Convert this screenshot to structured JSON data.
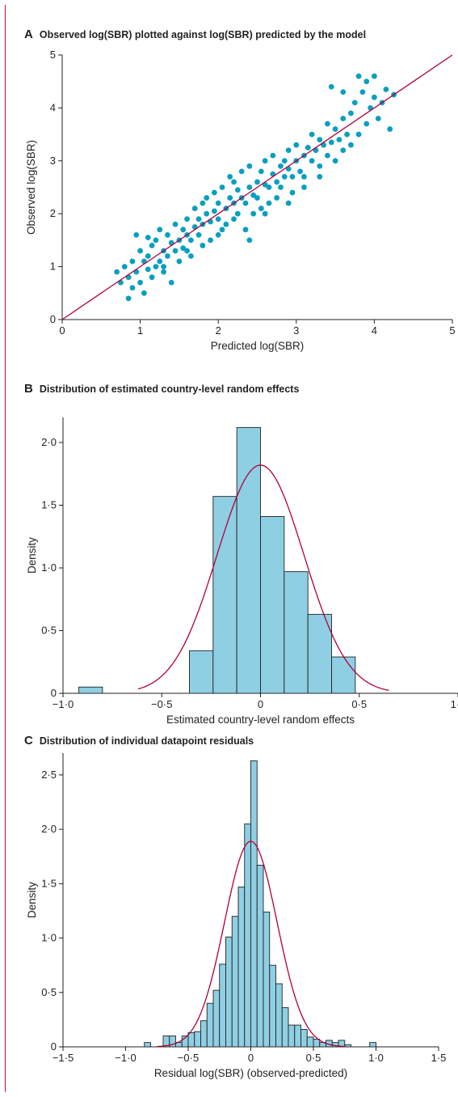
{
  "colors": {
    "point": "#0a9fbf",
    "bar_fill": "#8fcfe3",
    "bar_stroke": "#222222",
    "curve": "#b0003a",
    "axis": "#231f20",
    "border": "#c8102e"
  },
  "chart_data": [
    {
      "panel": "A",
      "type": "scatter",
      "title": "Observed log(SBR) plotted against log(SBR) predicted by the model",
      "xlabel": "Predicted log(SBR)",
      "ylabel": "Observed log(SBR)",
      "xlim": [
        0,
        5
      ],
      "ylim": [
        0,
        5
      ],
      "xticks": [
        "0",
        "1",
        "2",
        "3",
        "4",
        "5"
      ],
      "yticks": [
        "0",
        "1",
        "2",
        "3",
        "4",
        "5"
      ],
      "reference_line": "y = x",
      "grid": false,
      "points": [
        [
          0.7,
          0.9
        ],
        [
          0.75,
          0.7
        ],
        [
          0.8,
          1.0
        ],
        [
          0.85,
          0.4
        ],
        [
          0.85,
          0.8
        ],
        [
          0.9,
          0.6
        ],
        [
          0.9,
          1.1
        ],
        [
          0.95,
          0.9
        ],
        [
          0.95,
          1.6
        ],
        [
          1.0,
          1.3
        ],
        [
          1.0,
          0.7
        ],
        [
          1.05,
          1.1
        ],
        [
          1.05,
          0.5
        ],
        [
          1.1,
          1.2
        ],
        [
          1.1,
          0.95
        ],
        [
          1.15,
          1.4
        ],
        [
          1.15,
          0.8
        ],
        [
          1.2,
          1.0
        ],
        [
          1.2,
          1.5
        ],
        [
          1.25,
          1.1
        ],
        [
          1.25,
          1.7
        ],
        [
          1.3,
          1.3
        ],
        [
          1.3,
          0.9
        ],
        [
          1.35,
          1.6
        ],
        [
          1.35,
          1.2
        ],
        [
          1.4,
          1.45
        ],
        [
          1.4,
          0.7
        ],
        [
          1.45,
          1.3
        ],
        [
          1.45,
          1.8
        ],
        [
          1.5,
          1.5
        ],
        [
          1.5,
          1.1
        ],
        [
          1.55,
          1.7
        ],
        [
          1.55,
          1.35
        ],
        [
          1.6,
          1.6
        ],
        [
          1.6,
          1.9
        ],
        [
          1.65,
          1.5
        ],
        [
          1.65,
          1.2
        ],
        [
          1.7,
          1.75
        ],
        [
          1.7,
          2.1
        ],
        [
          1.75,
          1.6
        ],
        [
          1.75,
          1.9
        ],
        [
          1.8,
          1.8
        ],
        [
          1.8,
          1.4
        ],
        [
          1.85,
          2.0
        ],
        [
          1.85,
          2.3
        ],
        [
          1.9,
          1.85
        ],
        [
          1.9,
          1.5
        ],
        [
          1.95,
          2.05
        ],
        [
          1.95,
          2.4
        ],
        [
          2.0,
          1.9
        ],
        [
          2.0,
          2.2
        ],
        [
          2.05,
          1.7
        ],
        [
          2.05,
          2.5
        ],
        [
          2.1,
          2.1
        ],
        [
          2.1,
          1.8
        ],
        [
          2.15,
          2.3
        ],
        [
          2.15,
          2.7
        ],
        [
          2.2,
          2.2
        ],
        [
          2.2,
          1.9
        ],
        [
          2.25,
          2.45
        ],
        [
          2.25,
          2.0
        ],
        [
          2.3,
          2.3
        ],
        [
          2.3,
          2.8
        ],
        [
          2.35,
          2.2
        ],
        [
          2.35,
          1.7
        ],
        [
          2.4,
          2.5
        ],
        [
          2.4,
          2.9
        ],
        [
          2.45,
          2.35
        ],
        [
          2.45,
          2.0
        ],
        [
          2.5,
          2.6
        ],
        [
          2.5,
          2.3
        ],
        [
          2.55,
          2.8
        ],
        [
          2.55,
          2.1
        ],
        [
          2.6,
          2.55
        ],
        [
          2.6,
          3.0
        ],
        [
          2.65,
          2.5
        ],
        [
          2.65,
          2.2
        ],
        [
          2.7,
          2.75
        ],
        [
          2.7,
          3.1
        ],
        [
          2.75,
          2.6
        ],
        [
          2.75,
          2.3
        ],
        [
          2.8,
          2.9
        ],
        [
          2.8,
          2.5
        ],
        [
          2.85,
          3.0
        ],
        [
          2.85,
          2.7
        ],
        [
          2.9,
          2.85
        ],
        [
          2.9,
          3.2
        ],
        [
          2.95,
          2.7
        ],
        [
          2.95,
          2.4
        ],
        [
          3.0,
          3.0
        ],
        [
          3.0,
          3.3
        ],
        [
          3.05,
          2.8
        ],
        [
          3.1,
          3.1
        ],
        [
          3.1,
          2.7
        ],
        [
          3.15,
          3.25
        ],
        [
          3.2,
          3.0
        ],
        [
          3.2,
          3.5
        ],
        [
          3.25,
          3.2
        ],
        [
          3.3,
          2.9
        ],
        [
          3.3,
          3.4
        ],
        [
          3.35,
          3.3
        ],
        [
          3.4,
          3.1
        ],
        [
          3.4,
          3.7
        ],
        [
          3.45,
          3.35
        ],
        [
          3.5,
          3.0
        ],
        [
          3.5,
          3.6
        ],
        [
          3.55,
          3.4
        ],
        [
          3.6,
          3.8
        ],
        [
          3.6,
          3.2
        ],
        [
          3.65,
          3.5
        ],
        [
          3.7,
          3.9
        ],
        [
          3.7,
          3.3
        ],
        [
          3.75,
          4.1
        ],
        [
          3.8,
          4.6
        ],
        [
          3.8,
          3.5
        ],
        [
          3.85,
          4.3
        ],
        [
          3.9,
          4.5
        ],
        [
          3.9,
          3.7
        ],
        [
          3.95,
          4.0
        ],
        [
          4.0,
          4.2
        ],
        [
          4.0,
          4.6
        ],
        [
          4.05,
          3.8
        ],
        [
          4.1,
          4.1
        ],
        [
          4.15,
          4.35
        ],
        [
          4.2,
          3.6
        ],
        [
          4.25,
          4.25
        ],
        [
          1.1,
          1.55
        ],
        [
          1.3,
          1.0
        ],
        [
          1.6,
          1.3
        ],
        [
          1.8,
          2.2
        ],
        [
          2.0,
          1.6
        ],
        [
          2.2,
          2.6
        ],
        [
          2.4,
          1.5
        ],
        [
          2.6,
          2.0
        ],
        [
          2.9,
          2.2
        ],
        [
          3.1,
          2.5
        ],
        [
          3.3,
          2.7
        ],
        [
          3.6,
          4.3
        ],
        [
          3.45,
          4.4
        ]
      ]
    },
    {
      "panel": "B",
      "type": "bar",
      "title": "Distribution of estimated country-level random effects",
      "xlabel": "Estimated country-level random effects",
      "ylabel": "Density",
      "xlim": [
        -1.0,
        1.0
      ],
      "ylim": [
        0,
        2.2
      ],
      "xticks": [
        "−1·0",
        "−0·5",
        "0",
        "0·5",
        "1·0"
      ],
      "yticks": [
        "0",
        "0·5",
        "1·0",
        "1·5",
        "2·0"
      ],
      "bin_width": 0.12,
      "bins": [
        {
          "start": -0.92,
          "density": 0.05
        },
        {
          "start": -0.36,
          "density": 0.34
        },
        {
          "start": -0.24,
          "density": 1.57
        },
        {
          "start": -0.12,
          "density": 2.12
        },
        {
          "start": 0.0,
          "density": 1.41
        },
        {
          "start": 0.12,
          "density": 0.97
        },
        {
          "start": 0.24,
          "density": 0.63
        },
        {
          "start": 0.36,
          "density": 0.29
        }
      ],
      "curve": {
        "type": "normal",
        "mean": 0.0,
        "sd": 0.22,
        "peak": 1.82,
        "range": [
          -0.62,
          0.65
        ]
      }
    },
    {
      "panel": "C",
      "type": "bar",
      "title": "Distribution of individual datapoint residuals",
      "xlabel": "Residual log(SBR) (observed-predicted)",
      "ylabel": "Density",
      "xlim": [
        -1.5,
        1.5
      ],
      "ylim": [
        0,
        2.7
      ],
      "xticks": [
        "−1·5",
        "−1·0",
        "−0·5",
        "0",
        "0·5",
        "1·0",
        "1·5"
      ],
      "yticks": [
        "0",
        "0·5",
        "1·0",
        "1·5",
        "2·0",
        "2·5"
      ],
      "bin_width": 0.05,
      "bins": [
        {
          "start": -0.85,
          "density": 0.04
        },
        {
          "start": -0.7,
          "density": 0.1
        },
        {
          "start": -0.65,
          "density": 0.1
        },
        {
          "start": -0.6,
          "density": 0.04
        },
        {
          "start": -0.55,
          "density": 0.1
        },
        {
          "start": -0.5,
          "density": 0.13
        },
        {
          "start": -0.45,
          "density": 0.14
        },
        {
          "start": -0.4,
          "density": 0.24
        },
        {
          "start": -0.35,
          "density": 0.4
        },
        {
          "start": -0.3,
          "density": 0.52
        },
        {
          "start": -0.25,
          "density": 0.76
        },
        {
          "start": -0.2,
          "density": 1.01
        },
        {
          "start": -0.15,
          "density": 1.2
        },
        {
          "start": -0.1,
          "density": 1.47
        },
        {
          "start": -0.05,
          "density": 2.05
        },
        {
          "start": 0.0,
          "density": 2.63
        },
        {
          "start": 0.05,
          "density": 1.67
        },
        {
          "start": 0.1,
          "density": 1.24
        },
        {
          "start": 0.15,
          "density": 0.75
        },
        {
          "start": 0.2,
          "density": 0.58
        },
        {
          "start": 0.25,
          "density": 0.36
        },
        {
          "start": 0.3,
          "density": 0.2
        },
        {
          "start": 0.35,
          "density": 0.2
        },
        {
          "start": 0.4,
          "density": 0.16
        },
        {
          "start": 0.45,
          "density": 0.09
        },
        {
          "start": 0.5,
          "density": 0.07
        },
        {
          "start": 0.55,
          "density": 0.04
        },
        {
          "start": 0.6,
          "density": 0.06
        },
        {
          "start": 0.65,
          "density": 0.04
        },
        {
          "start": 0.7,
          "density": 0.06
        },
        {
          "start": 0.75,
          "density": 0.02
        },
        {
          "start": 0.95,
          "density": 0.04
        }
      ],
      "curve": {
        "type": "normal",
        "mean": 0.0,
        "sd": 0.21,
        "peak": 1.89,
        "range": [
          -0.75,
          0.76
        ]
      }
    }
  ]
}
